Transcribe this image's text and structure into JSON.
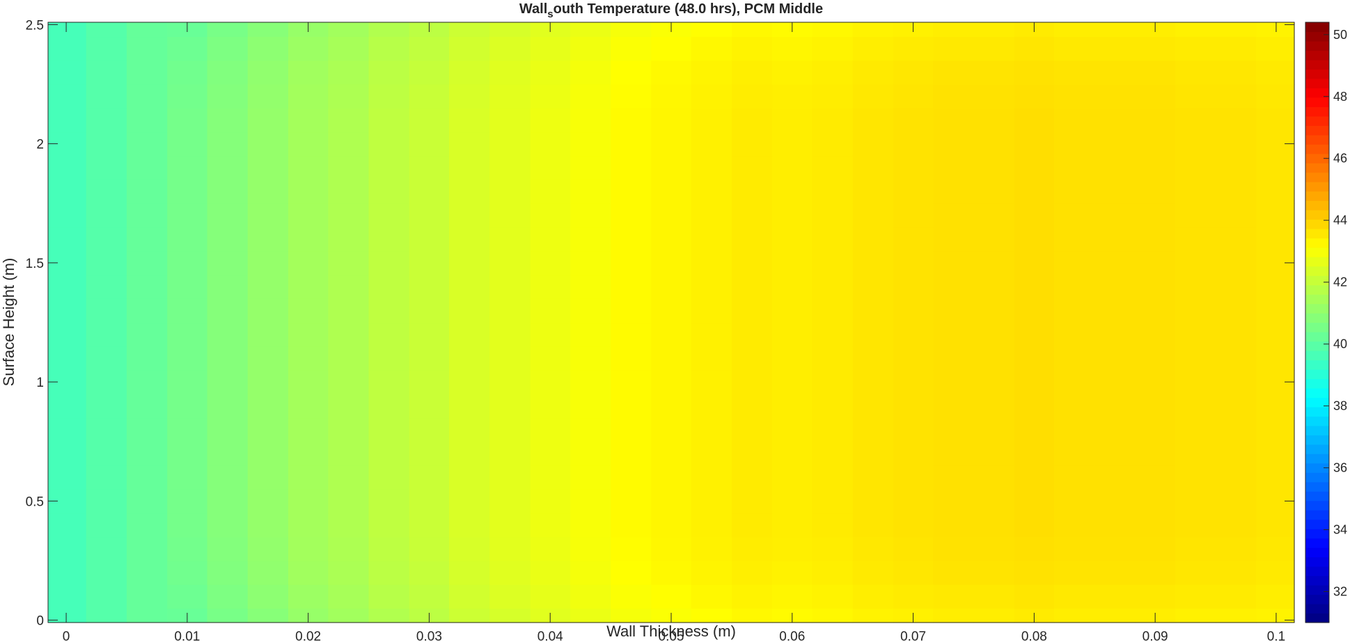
{
  "chart_data": {
    "type": "heatmap",
    "title": "Wall",
    "title_subscript": "s",
    "title_rest": "outh  Temperature  (48.0  hrs),  PCM  Middle",
    "xlabel": "Wall Thickness (m)",
    "ylabel": "Surface Height (m)",
    "xlim": [
      -0.0015,
      0.1015
    ],
    "ylim": [
      -0.01,
      2.51
    ],
    "xticks": [
      "0",
      "0.01",
      "0.02",
      "0.03",
      "0.04",
      "0.05",
      "0.06",
      "0.07",
      "0.08",
      "0.09",
      "0.1"
    ],
    "xtick_values": [
      0,
      0.01,
      0.02,
      0.03,
      0.04,
      0.05,
      0.06,
      0.07,
      0.08,
      0.09,
      0.1
    ],
    "yticks": [
      "0",
      "0.5",
      "1",
      "1.5",
      "2",
      "2.5"
    ],
    "ytick_values": [
      0,
      0.5,
      1,
      1.5,
      2,
      2.5
    ],
    "colormap": "jet",
    "clim": [
      31,
      50.4
    ],
    "colorbar_ticks": [
      "32",
      "34",
      "36",
      "38",
      "40",
      "42",
      "44",
      "46",
      "48",
      "50"
    ],
    "colorbar_tick_values": [
      32,
      34,
      36,
      38,
      40,
      42,
      44,
      46,
      48,
      50
    ],
    "x_centers": [
      0,
      0.0033,
      0.0067,
      0.01,
      0.0133,
      0.0167,
      0.02,
      0.0233,
      0.0267,
      0.03,
      0.0333,
      0.0367,
      0.04,
      0.0433,
      0.0467,
      0.05,
      0.0533,
      0.0567,
      0.06,
      0.0633,
      0.0667,
      0.07,
      0.0733,
      0.0767,
      0.08,
      0.0833,
      0.0867,
      0.09,
      0.0933,
      0.0967,
      0.1
    ],
    "y_centers": [
      0,
      0.1,
      0.2,
      0.3,
      0.4,
      0.5,
      0.6,
      0.7,
      0.8,
      0.9,
      1.0,
      1.1,
      1.2,
      1.3,
      1.4,
      1.5,
      1.6,
      1.7,
      1.8,
      1.9,
      2.0,
      2.1,
      2.2,
      2.3,
      2.4,
      2.5
    ],
    "column_temperatures": [
      39.6,
      39.9,
      40.2,
      40.5,
      40.8,
      41.1,
      41.4,
      41.6,
      41.9,
      42.1,
      42.4,
      42.6,
      42.8,
      43.0,
      43.2,
      43.3,
      43.4,
      43.5,
      43.45,
      43.5,
      43.6,
      43.65,
      43.7,
      43.7,
      43.75,
      43.7,
      43.7,
      43.7,
      43.65,
      43.65,
      43.6
    ],
    "edge_cooling": [
      0.25,
      0.15,
      0.07,
      0.03,
      0,
      0,
      0,
      0,
      0,
      0,
      0,
      0,
      0,
      0,
      0,
      0,
      0,
      0,
      0,
      0,
      0,
      0,
      0.03,
      0.07,
      0.15,
      0.25
    ]
  }
}
